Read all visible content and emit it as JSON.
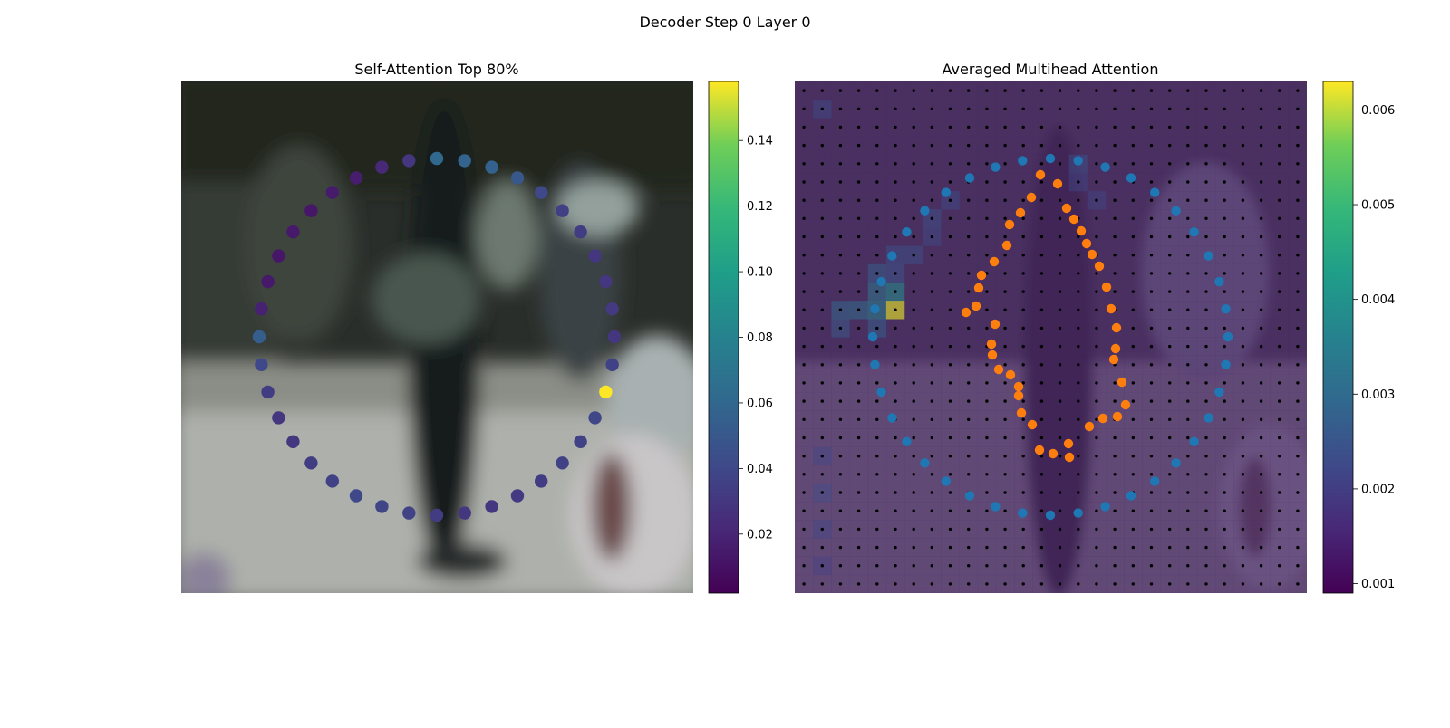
{
  "figure": {
    "title": "Decoder Step 0 Layer 0"
  },
  "chart_data": [
    {
      "type": "scatter",
      "title": "Self-Attention Top 80%",
      "background": "blurred street photo",
      "colormap": "viridis",
      "colorbar": {
        "ticks": [
          0.02,
          0.04,
          0.06,
          0.08,
          0.1,
          0.12,
          0.14
        ],
        "tick_labels": [
          "0.02",
          "0.04",
          "0.06",
          "0.08",
          "0.10",
          "0.12",
          "0.14"
        ],
        "range": [
          0.002,
          0.158
        ]
      },
      "points": {
        "count": 40,
        "shape": "circle",
        "weights": [
          0.061,
          0.058,
          0.056,
          0.05,
          0.04,
          0.035,
          0.033,
          0.03,
          0.03,
          0.032,
          0.03,
          0.036,
          0.158,
          0.039,
          0.036,
          0.036,
          0.033,
          0.032,
          0.03,
          0.03,
          0.033,
          0.036,
          0.038,
          0.04,
          0.036,
          0.033,
          0.03,
          0.03,
          0.033,
          0.04,
          0.054,
          0.018,
          0.014,
          0.013,
          0.014,
          0.013,
          0.015,
          0.016,
          0.022,
          0.03
        ]
      }
    },
    {
      "type": "heatmap",
      "title": "Averaged Multihead Attention",
      "colormap": "viridis",
      "colorbar": {
        "ticks": [
          0.001,
          0.002,
          0.003,
          0.004,
          0.005,
          0.006
        ],
        "tick_labels": [
          "0.001",
          "0.002",
          "0.003",
          "0.004",
          "0.005",
          "0.006"
        ],
        "range": [
          0.0009,
          0.0063
        ]
      },
      "grid": {
        "rows": 28,
        "cols": 28,
        "base_value": 0.0015,
        "hotspots": [
          {
            "row": 12,
            "col": 5,
            "value": 0.0062
          },
          {
            "row": 11,
            "col": 5,
            "value": 0.0036
          },
          {
            "row": 12,
            "col": 4,
            "value": 0.0033
          },
          {
            "row": 11,
            "col": 4,
            "value": 0.003
          },
          {
            "row": 12,
            "col": 3,
            "value": 0.0028
          },
          {
            "row": 12,
            "col": 2,
            "value": 0.0027
          },
          {
            "row": 13,
            "col": 2,
            "value": 0.0024
          },
          {
            "row": 13,
            "col": 4,
            "value": 0.0025
          },
          {
            "row": 10,
            "col": 4,
            "value": 0.0025
          },
          {
            "row": 10,
            "col": 5,
            "value": 0.0023
          },
          {
            "row": 9,
            "col": 5,
            "value": 0.0022
          },
          {
            "row": 9,
            "col": 6,
            "value": 0.0022
          },
          {
            "row": 8,
            "col": 7,
            "value": 0.0021
          },
          {
            "row": 7,
            "col": 7,
            "value": 0.0022
          },
          {
            "row": 6,
            "col": 8,
            "value": 0.0021
          },
          {
            "row": 4,
            "col": 15,
            "value": 0.0022
          },
          {
            "row": 5,
            "col": 15,
            "value": 0.002
          },
          {
            "row": 6,
            "col": 16,
            "value": 0.002
          },
          {
            "row": 1,
            "col": 1,
            "value": 0.0021
          },
          {
            "row": 20,
            "col": 1,
            "value": 0.002
          },
          {
            "row": 22,
            "col": 1,
            "value": 0.0021
          },
          {
            "row": 24,
            "col": 1,
            "value": 0.002
          },
          {
            "row": 26,
            "col": 1,
            "value": 0.0019
          }
        ]
      },
      "reference_grid_marker": {
        "color": "#000000",
        "shape": "dot"
      },
      "series": [
        {
          "color": "#1f77b4",
          "count": 40
        },
        {
          "color": "#ff7f0e",
          "count": 40
        }
      ]
    }
  ]
}
